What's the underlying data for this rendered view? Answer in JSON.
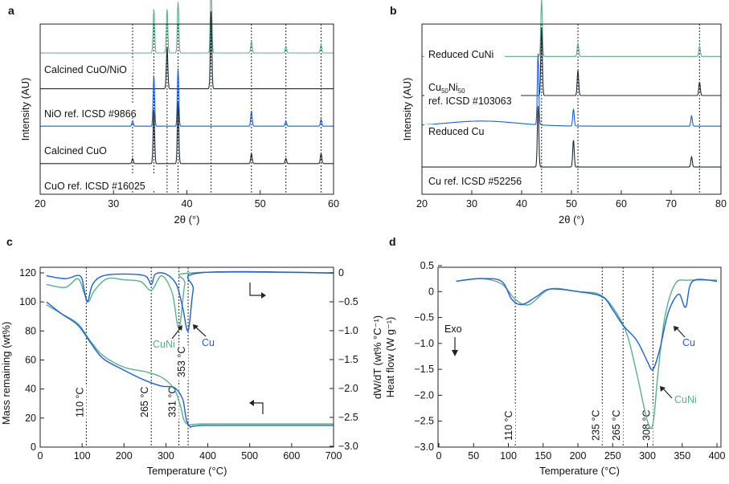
{
  "colors": {
    "green": "#5aaf8c",
    "blue": "#1f5fd6",
    "dark": "#1c2a36"
  },
  "chart_data": [
    {
      "panel": "a",
      "type": "line",
      "xlabel": "2θ (°)",
      "ylabel": "Intensity (AU)",
      "xlim": [
        20,
        60
      ],
      "xticks": [
        20,
        30,
        40,
        50,
        60
      ],
      "reference_lines_x": [
        32.6,
        35.5,
        37.3,
        38.8,
        43.3,
        48.8,
        53.5,
        58.3
      ],
      "series": [
        {
          "name": "Calcined CuO/NiO",
          "color": "green",
          "baseline": 0.83,
          "peaks": [
            [
              35.5,
              0.26
            ],
            [
              37.3,
              0.26
            ],
            [
              38.8,
              0.3
            ],
            [
              43.3,
              0.43
            ],
            [
              48.8,
              0.07
            ],
            [
              53.5,
              0.04
            ],
            [
              58.3,
              0.05
            ]
          ]
        },
        {
          "name": "NiO ref. ICSD #9866",
          "color": "dark",
          "baseline": 0.62,
          "peaks": [
            [
              37.3,
              0.25
            ],
            [
              43.3,
              0.46
            ]
          ]
        },
        {
          "name": "Calcined CuO",
          "color": "blue",
          "baseline": 0.4,
          "peaks": [
            [
              32.6,
              0.03
            ],
            [
              35.5,
              0.3
            ],
            [
              38.8,
              0.34
            ],
            [
              48.8,
              0.09
            ],
            [
              53.5,
              0.03
            ],
            [
              58.3,
              0.04
            ]
          ]
        },
        {
          "name": "CuO ref. ICSD #16025",
          "color": "dark",
          "baseline": 0.18,
          "peaks": [
            [
              32.6,
              0.03
            ],
            [
              35.5,
              0.32
            ],
            [
              38.8,
              0.36
            ],
            [
              48.8,
              0.06
            ],
            [
              53.5,
              0.03
            ],
            [
              58.3,
              0.06
            ]
          ]
        }
      ]
    },
    {
      "panel": "b",
      "type": "line",
      "xlabel": "2θ (°)",
      "ylabel": "Intensity (AU)",
      "xlim": [
        20,
        80
      ],
      "xticks": [
        20,
        30,
        40,
        50,
        60,
        70,
        80
      ],
      "reference_lines_x": [
        44.0,
        51.3,
        75.7
      ],
      "series": [
        {
          "name": "Reduced CuNi",
          "color": "green",
          "baseline": 0.81,
          "peaks": [
            [
              44.0,
              0.34
            ],
            [
              51.3,
              0.08
            ],
            [
              75.7,
              0.06
            ]
          ]
        },
        {
          "name": "Cu50Ni50 ref. ICSD #103063",
          "color": "dark",
          "baseline": 0.58,
          "peaks": [
            [
              44.0,
              0.4
            ],
            [
              51.3,
              0.15
            ],
            [
              75.7,
              0.08
            ]
          ]
        },
        {
          "name": "Reduced Cu",
          "color": "blue",
          "baseline": 0.4,
          "peaks": [
            [
              43.3,
              0.42
            ],
            [
              50.4,
              0.1
            ],
            [
              74.1,
              0.06
            ]
          ]
        },
        {
          "name": "Cu ref. ICSD #52256",
          "color": "dark",
          "baseline": 0.16,
          "peaks": [
            [
              43.3,
              0.36
            ],
            [
              50.4,
              0.16
            ],
            [
              74.1,
              0.06
            ]
          ]
        }
      ]
    },
    {
      "panel": "c",
      "type": "line",
      "xlabel": "Temperature (°C)",
      "ylabel": "Mass remaining (wt%)",
      "ylabel_right": "dW/dT (wt% °C⁻¹)",
      "xlim": [
        0,
        700
      ],
      "ylim": [
        0,
        125
      ],
      "ylim_right": [
        -3.0,
        0.15
      ],
      "xticks": [
        0,
        100,
        200,
        300,
        400,
        500,
        600,
        700
      ],
      "yticks": [
        0,
        20,
        40,
        60,
        80,
        100,
        120
      ],
      "yticks_right": [
        "0",
        "−0.5",
        "−1.0",
        "−1.5",
        "−2.0",
        "−2.5",
        "−3.0"
      ],
      "yticks_right_values": [
        0,
        -0.5,
        -1.0,
        -1.5,
        -2.0,
        -2.5,
        -3.0
      ],
      "reference_lines_x": [
        110,
        265,
        331,
        353
      ],
      "reference_labels": [
        "110 °C",
        "265 °C",
        "331 °C",
        "353 °C"
      ],
      "annotations": [
        "CuNi",
        "Cu"
      ],
      "series": [
        {
          "name": "CuNi mass",
          "color": "green",
          "axis": "left",
          "x": [
            15,
            50,
            90,
            120,
            150,
            200,
            250,
            290,
            320,
            335,
            350,
            400,
            700
          ],
          "y": [
            98,
            92,
            85,
            73,
            63,
            55,
            52,
            48,
            40,
            28,
            16,
            16,
            16
          ]
        },
        {
          "name": "Cu mass",
          "color": "blue",
          "axis": "left",
          "x": [
            15,
            50,
            90,
            120,
            150,
            200,
            250,
            290,
            320,
            340,
            355,
            400,
            700
          ],
          "y": [
            100,
            92,
            84,
            72,
            61,
            53,
            46,
            42,
            41,
            33,
            15,
            15,
            15
          ]
        },
        {
          "name": "CuNi dW/dT",
          "color": "green",
          "axis": "right",
          "x": [
            15,
            60,
            90,
            105,
            115,
            130,
            160,
            200,
            240,
            265,
            290,
            315,
            331,
            345,
            360,
            700
          ],
          "y": [
            -0.2,
            -0.25,
            -0.1,
            -0.35,
            -0.5,
            -0.3,
            -0.1,
            -0.12,
            -0.15,
            -0.3,
            -0.05,
            -0.35,
            -0.95,
            -0.2,
            0,
            0
          ]
        },
        {
          "name": "Cu dW/dT",
          "color": "blue",
          "axis": "right",
          "x": [
            15,
            60,
            95,
            105,
            113,
            125,
            150,
            200,
            250,
            265,
            275,
            300,
            325,
            340,
            353,
            365,
            380,
            700
          ],
          "y": [
            -0.05,
            -0.1,
            -0.05,
            -0.3,
            -0.5,
            -0.2,
            -0.05,
            -0.02,
            -0.05,
            -0.2,
            -0.02,
            -0.02,
            -0.2,
            -0.6,
            -1.0,
            -0.3,
            0,
            0
          ]
        }
      ]
    },
    {
      "panel": "d",
      "type": "line",
      "xlabel": "Temperature (°C)",
      "ylabel": "Heat flow (W g⁻¹)",
      "xlim": [
        0,
        400
      ],
      "ylim": [
        -3.0,
        0.5
      ],
      "xticks": [
        0,
        50,
        100,
        150,
        200,
        250,
        300,
        350,
        400
      ],
      "yticks": [
        "0.5",
        "0",
        "−0.5",
        "−1.0",
        "−1.5",
        "−2.0",
        "−2.5",
        "−3.0"
      ],
      "yticks_values": [
        0.5,
        0,
        -0.5,
        -1.0,
        -1.5,
        -2.0,
        -2.5,
        -3.0
      ],
      "reference_lines_x": [
        110,
        235,
        265,
        308
      ],
      "reference_labels": [
        "110 °C",
        "235 °C",
        "265 °C",
        "308 °C"
      ],
      "annotations": [
        "Exo",
        "Cu",
        "CuNi"
      ],
      "series": [
        {
          "name": "CuNi",
          "color": "green",
          "x": [
            25,
            60,
            90,
            110,
            130,
            160,
            200,
            230,
            250,
            270,
            285,
            300,
            308,
            315,
            325,
            340,
            360,
            400
          ],
          "y": [
            0.2,
            0.25,
            0.15,
            -0.15,
            -0.25,
            0.05,
            0.0,
            -0.05,
            -0.3,
            -0.8,
            -1.6,
            -2.5,
            -2.55,
            -1.6,
            -0.5,
            0.15,
            0.22,
            0.22
          ]
        },
        {
          "name": "Cu",
          "color": "blue",
          "x": [
            25,
            60,
            90,
            105,
            120,
            140,
            160,
            200,
            235,
            250,
            265,
            285,
            300,
            308,
            318,
            330,
            345,
            355,
            365,
            400
          ],
          "y": [
            0.2,
            0.25,
            0.2,
            -0.15,
            -0.25,
            -0.1,
            0.05,
            0.0,
            -0.1,
            -0.35,
            -0.65,
            -0.95,
            -1.35,
            -1.5,
            -1.1,
            -0.4,
            -0.05,
            -0.3,
            0.2,
            0.2
          ]
        }
      ]
    }
  ]
}
